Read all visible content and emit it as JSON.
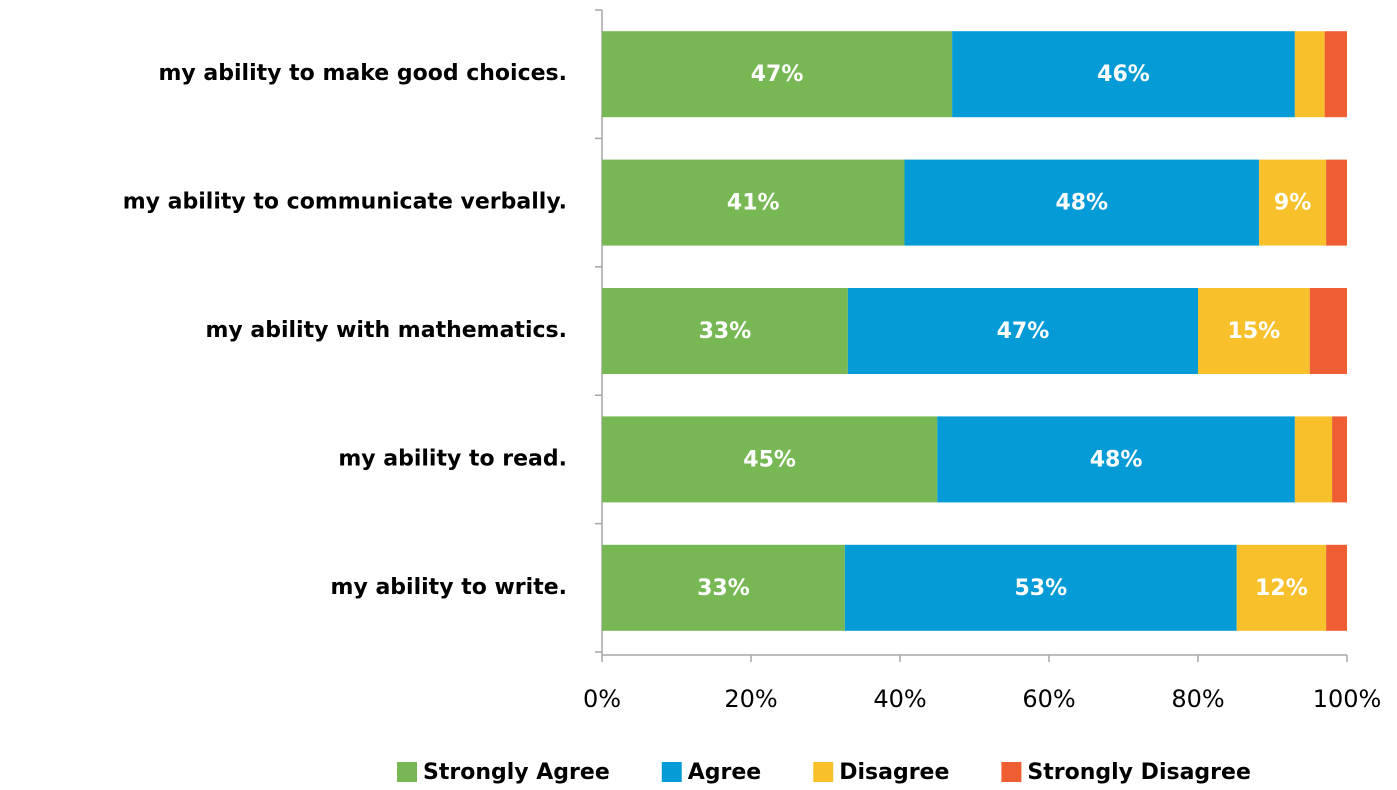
{
  "chart_data": {
    "type": "stacked-barh",
    "categories": [
      "my ability to make good choices.",
      "my ability to communicate verbally.",
      "my ability with mathematics.",
      "my ability to read.",
      "my ability to write."
    ],
    "series": [
      {
        "name": "Strongly Agree",
        "color": "#77b855",
        "values": [
          47,
          40.6,
          33,
          45,
          32.6
        ],
        "value_labels": [
          "47%",
          "41%",
          "33%",
          "45%",
          "33%"
        ]
      },
      {
        "name": "Agree",
        "color": "#059bd6",
        "values": [
          46,
          47.6,
          47,
          48,
          52.6
        ],
        "value_labels": [
          "46%",
          "48%",
          "47%",
          "48%",
          "53%"
        ]
      },
      {
        "name": "Disagree",
        "color": "#f8c12c",
        "values": [
          4,
          9,
          15,
          5,
          12
        ],
        "value_labels": [
          null,
          "9%",
          "15%",
          null,
          "12%"
        ]
      },
      {
        "name": "Strongly Disagree",
        "color": "#ef5d33",
        "values": [
          3,
          2.8,
          5,
          2,
          2.8
        ],
        "value_labels": [
          null,
          null,
          null,
          null,
          null
        ]
      }
    ],
    "xlim": [
      0,
      100
    ],
    "xticks": [
      {
        "value": 0,
        "label": "0%"
      },
      {
        "value": 20,
        "label": "20%"
      },
      {
        "value": 40,
        "label": "40%"
      },
      {
        "value": 60,
        "label": "60%"
      },
      {
        "value": 80,
        "label": "80%"
      },
      {
        "value": 100,
        "label": "100%"
      }
    ],
    "legend": "bottom"
  }
}
